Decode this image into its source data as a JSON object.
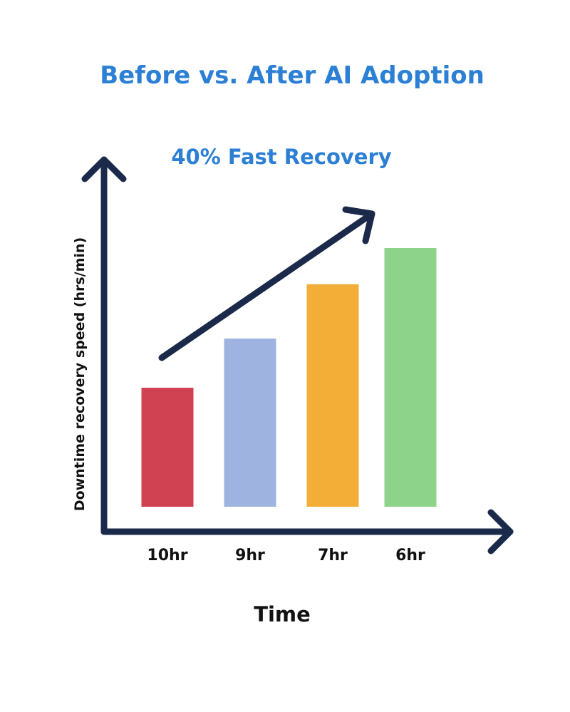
{
  "chart_data": {
    "type": "bar",
    "title": "Before vs. After AI Adoption",
    "subtitle": "40% Fast Recovery",
    "xlabel": "Time",
    "ylabel": "Downtime recovery speed (hrs/min)",
    "categories": [
      "10hr",
      "9hr",
      "7hr",
      "6hr"
    ],
    "values": [
      46,
      65,
      86,
      100
    ],
    "ylim": [
      0,
      100
    ],
    "grid": false,
    "legend": "none",
    "bar_colors": [
      "#d04152",
      "#9eb3e0",
      "#f2ae36",
      "#8ed38a"
    ],
    "annotations": [
      "upward trend arrow"
    ]
  },
  "colors": {
    "title": "#2b7fd4",
    "axis": "#1b2a4a",
    "text": "#111111"
  }
}
